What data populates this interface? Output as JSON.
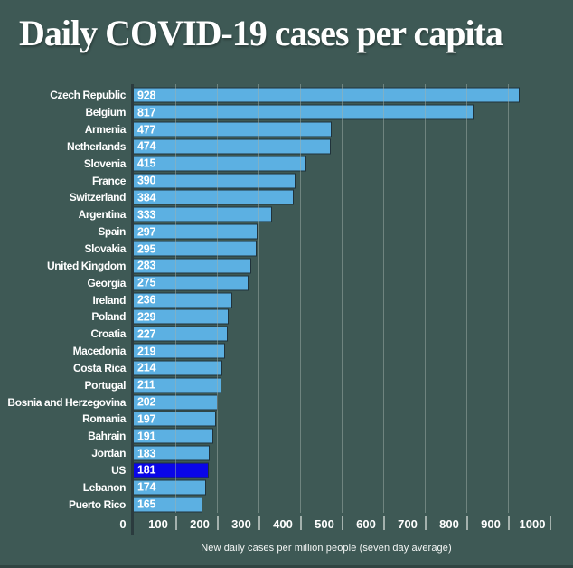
{
  "title": "Daily COVID-19 cases per capita",
  "chart_data": {
    "type": "bar",
    "orientation": "horizontal",
    "title": "Daily COVID-19 cases per capita",
    "xlabel": "New daily cases per million people (seven day average)",
    "xlim": [
      0,
      1000
    ],
    "x_ticks": [
      0,
      100,
      200,
      300,
      400,
      500,
      600,
      700,
      800,
      900,
      1000
    ],
    "grid": true,
    "legend": "none",
    "highlight_category": "US",
    "categories": [
      "Czech Republic",
      "Belgium",
      "Armenia",
      "Netherlands",
      "Slovenia",
      "France",
      "Switzerland",
      "Argentina",
      "Spain",
      "Slovakia",
      "United Kingdom",
      "Georgia",
      "Ireland",
      "Poland",
      "Croatia",
      "Macedonia",
      "Costa Rica",
      "Portugal",
      "Bosnia and Herzegovina",
      "Romania",
      "Bahrain",
      "Jordan",
      "US",
      "Lebanon",
      "Puerto Rico"
    ],
    "values": [
      928,
      817,
      477,
      474,
      415,
      390,
      384,
      333,
      297,
      295,
      283,
      275,
      236,
      229,
      227,
      219,
      214,
      211,
      202,
      197,
      191,
      183,
      181,
      174,
      165
    ],
    "colors": {
      "background": "#3E5955",
      "bar": "#5CB0E2",
      "highlight_bar": "#0A06E8",
      "text": "#FFFFFF",
      "gridline": "rgba(160,175,170,0.50)",
      "axis_line": "#2B3B3E",
      "tick_mark": "#A4B1AD"
    }
  }
}
